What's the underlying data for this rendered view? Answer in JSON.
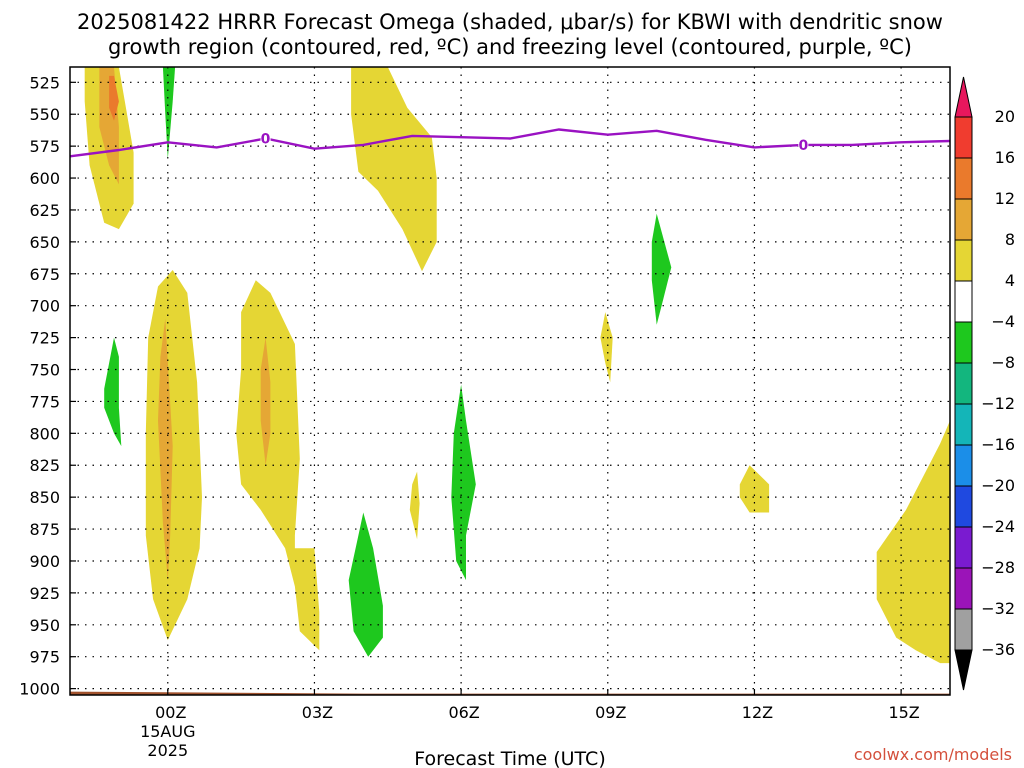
{
  "chart_data": {
    "type": "heatmap",
    "title_line1": "2025081422 HRRR Forecast Omega (shaded, μbar/s) for KBWI with dendritic snow",
    "title_line2": "growth region (contoured, red, ºC) and freezing level (contoured, purple, ºC)",
    "xlabel": "Forecast Time (UTC)",
    "credit": "coolwx.com/models",
    "y_ticks": [
      525,
      550,
      575,
      600,
      625,
      650,
      675,
      700,
      725,
      750,
      775,
      800,
      825,
      850,
      875,
      900,
      925,
      950,
      975,
      1000
    ],
    "ylim": [
      1005,
      513
    ],
    "x_ticks": [
      {
        "x": 0,
        "label": "00Z",
        "sub1": "15AUG",
        "sub2": "2025"
      },
      {
        "x": 3,
        "label": "03Z"
      },
      {
        "x": 6,
        "label": "06Z"
      },
      {
        "x": 9,
        "label": "09Z"
      },
      {
        "x": 12,
        "label": "12Z"
      },
      {
        "x": 15,
        "label": "15Z"
      }
    ],
    "xlim": [
      -2,
      16
    ],
    "colorbar": {
      "labels": [
        "20",
        "16",
        "12",
        "8",
        "4",
        "−4",
        "−8",
        "−12",
        "−16",
        "−20",
        "−24",
        "−28",
        "−32",
        "−36"
      ],
      "colors": [
        "#e8175d",
        "#f03c2f",
        "#ea7a2c",
        "#e5a735",
        "#e5d634",
        "#ffffff",
        "#1ec81e",
        "#13b67e",
        "#14b5b8",
        "#1b8ee8",
        "#1f49e0",
        "#7a1bd0",
        "#9b14b8",
        "#a0a0a0",
        "#000000"
      ]
    },
    "freezing_level": {
      "label": "0",
      "x": [
        -2,
        -1,
        0,
        1,
        2,
        3,
        4,
        5,
        6,
        7,
        8,
        9,
        10,
        11,
        12,
        13,
        14,
        15,
        16
      ],
      "y": [
        583,
        578,
        572,
        576,
        569,
        577,
        574,
        567,
        568,
        569,
        562,
        566,
        563,
        570,
        576,
        574,
        574,
        572,
        571
      ],
      "label_x": [
        2,
        13
      ]
    },
    "terrain": {
      "color": "#a0522d",
      "top_hpa": 1000
    },
    "omega_colors": {
      "4_8": "#e5d634",
      "8_12": "#e5a735",
      "12_16": "#ea7a2c",
      "m4_m8": "#1ec81e"
    },
    "regions": [
      {
        "level": "4_8",
        "pts": [
          [
            -1.7,
            513
          ],
          [
            -1.0,
            513
          ],
          [
            -0.7,
            580
          ],
          [
            -0.7,
            620
          ],
          [
            -1.0,
            640
          ],
          [
            -1.3,
            635
          ],
          [
            -1.6,
            590
          ],
          [
            -1.7,
            540
          ]
        ]
      },
      {
        "level": "8_12",
        "pts": [
          [
            -1.4,
            513
          ],
          [
            -1.1,
            513
          ],
          [
            -1.0,
            560
          ],
          [
            -1.0,
            580
          ],
          [
            -1.0,
            605
          ],
          [
            -1.2,
            590
          ],
          [
            -1.4,
            560
          ]
        ]
      },
      {
        "level": "12_16",
        "pts": [
          [
            -1.2,
            520
          ],
          [
            -1.1,
            520
          ],
          [
            -1.0,
            540
          ],
          [
            -1.1,
            555
          ],
          [
            -1.2,
            545
          ]
        ]
      },
      {
        "level": "m4_m8",
        "pts": [
          [
            -0.1,
            513
          ],
          [
            0.15,
            513
          ],
          [
            0.1,
            540
          ],
          [
            0.0,
            585
          ],
          [
            -0.05,
            550
          ]
        ]
      },
      {
        "level": "4_8",
        "pts": [
          [
            3.75,
            513
          ],
          [
            4.5,
            513
          ],
          [
            4.9,
            545
          ],
          [
            5.4,
            568
          ],
          [
            5.5,
            600
          ],
          [
            5.5,
            650
          ],
          [
            5.2,
            673
          ],
          [
            4.8,
            640
          ],
          [
            4.3,
            610
          ],
          [
            3.9,
            595
          ],
          [
            3.75,
            550
          ]
        ]
      },
      {
        "level": "4_8",
        "pts": [
          [
            -0.4,
            725
          ],
          [
            -0.2,
            685
          ],
          [
            0.1,
            672
          ],
          [
            0.4,
            690
          ],
          [
            0.6,
            760
          ],
          [
            0.7,
            850
          ],
          [
            0.65,
            890
          ],
          [
            0.4,
            930
          ],
          [
            0.0,
            962
          ],
          [
            -0.3,
            930
          ],
          [
            -0.45,
            880
          ],
          [
            -0.45,
            800
          ]
        ]
      },
      {
        "level": "8_12",
        "pts": [
          [
            -0.05,
            710
          ],
          [
            0.1,
            810
          ],
          [
            0.05,
            880
          ],
          [
            0.0,
            915
          ],
          [
            -0.1,
            870
          ],
          [
            -0.2,
            790
          ],
          [
            -0.15,
            740
          ]
        ]
      },
      {
        "level": "4_8",
        "pts": [
          [
            1.5,
            705
          ],
          [
            1.8,
            680
          ],
          [
            2.1,
            690
          ],
          [
            2.6,
            730
          ],
          [
            2.7,
            820
          ],
          [
            2.6,
            880
          ],
          [
            2.6,
            890
          ],
          [
            3.0,
            890
          ],
          [
            3.1,
            940
          ],
          [
            3.1,
            970
          ],
          [
            2.7,
            955
          ],
          [
            2.6,
            920
          ],
          [
            2.4,
            890
          ],
          [
            1.9,
            860
          ],
          [
            1.5,
            840
          ],
          [
            1.4,
            800
          ],
          [
            1.5,
            750
          ]
        ]
      },
      {
        "level": "8_12",
        "pts": [
          [
            2.0,
            725
          ],
          [
            2.1,
            760
          ],
          [
            2.1,
            800
          ],
          [
            2.0,
            825
          ],
          [
            1.9,
            790
          ],
          [
            1.9,
            750
          ]
        ]
      },
      {
        "level": "m4_m8",
        "pts": [
          [
            -1.3,
            765
          ],
          [
            -1.1,
            725
          ],
          [
            -1.0,
            740
          ],
          [
            -1.0,
            780
          ],
          [
            -0.95,
            810
          ],
          [
            -1.1,
            800
          ],
          [
            -1.3,
            780
          ]
        ]
      },
      {
        "level": "m4_m8",
        "pts": [
          [
            3.7,
            915
          ],
          [
            3.9,
            880
          ],
          [
            4.0,
            862
          ],
          [
            4.2,
            890
          ],
          [
            4.4,
            935
          ],
          [
            4.4,
            960
          ],
          [
            4.1,
            975
          ],
          [
            3.8,
            955
          ]
        ]
      },
      {
        "level": "4_8",
        "pts": [
          [
            5.0,
            840
          ],
          [
            5.1,
            830
          ],
          [
            5.15,
            855
          ],
          [
            5.1,
            883
          ],
          [
            4.95,
            860
          ]
        ]
      },
      {
        "level": "m4_m8",
        "pts": [
          [
            5.85,
            800
          ],
          [
            6.0,
            762
          ],
          [
            6.1,
            790
          ],
          [
            6.3,
            840
          ],
          [
            6.1,
            880
          ],
          [
            6.1,
            915
          ],
          [
            5.9,
            900
          ],
          [
            5.8,
            850
          ]
        ]
      },
      {
        "level": "4_8",
        "pts": [
          [
            8.85,
            725
          ],
          [
            8.95,
            705
          ],
          [
            9.1,
            725
          ],
          [
            9.05,
            760
          ],
          [
            8.95,
            745
          ]
        ]
      },
      {
        "level": "m4_m8",
        "pts": [
          [
            9.9,
            650
          ],
          [
            10.0,
            628
          ],
          [
            10.3,
            670
          ],
          [
            10.1,
            700
          ],
          [
            10.0,
            715
          ],
          [
            9.9,
            680
          ]
        ]
      },
      {
        "level": "4_8",
        "pts": [
          [
            11.7,
            840
          ],
          [
            11.9,
            825
          ],
          [
            12.3,
            840
          ],
          [
            12.3,
            862
          ],
          [
            11.9,
            862
          ],
          [
            11.7,
            850
          ]
        ]
      },
      {
        "level": "4_8",
        "pts": [
          [
            14.5,
            893
          ],
          [
            15.1,
            860
          ],
          [
            15.8,
            808
          ],
          [
            16.0,
            790
          ],
          [
            16.0,
            980
          ],
          [
            15.8,
            980
          ],
          [
            15.3,
            970
          ],
          [
            14.9,
            960
          ],
          [
            14.5,
            930
          ],
          [
            14.5,
            910
          ]
        ]
      }
    ]
  }
}
